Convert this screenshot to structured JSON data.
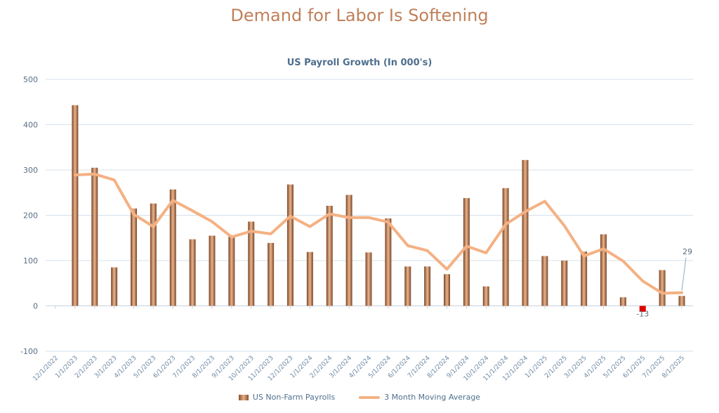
{
  "page_title": "Demand for Labor Is Softening",
  "chart_data": {
    "type": "bar",
    "title": "US Payroll Growth (In 000's)",
    "xlabel": "",
    "ylabel": "",
    "ylim": [
      -100,
      500
    ],
    "yticks": [
      500,
      400,
      300,
      200,
      100,
      0,
      -100
    ],
    "grid": true,
    "legend_position": "bottom",
    "categories": [
      "12/1/2022",
      "1/1/2023",
      "2/1/2023",
      "3/1/2023",
      "4/1/2023",
      "5/1/2023",
      "6/1/2023",
      "7/1/2023",
      "8/1/2023",
      "9/1/2023",
      "10/1/2023",
      "11/1/2023",
      "12/1/2023",
      "1/1/2024",
      "2/1/2024",
      "3/1/2024",
      "4/1/2024",
      "5/1/2024",
      "6/1/2024",
      "7/1/2024",
      "8/1/2024",
      "9/1/2024",
      "10/1/2024",
      "11/1/2024",
      "12/1/2024",
      "1/1/2025",
      "2/1/2025",
      "3/1/2025",
      "4/1/2025",
      "5/1/2025",
      "6/1/2025",
      "7/1/2025",
      "8/1/2025"
    ],
    "series": [
      {
        "name": "US Non-Farm Payrolls",
        "type": "bar",
        "values": [
          null,
          443,
          305,
          85,
          215,
          226,
          257,
          147,
          155,
          153,
          186,
          139,
          268,
          119,
          221,
          245,
          118,
          193,
          87,
          87,
          70,
          238,
          43,
          260,
          322,
          110,
          100,
          120,
          158,
          19,
          -13,
          79,
          22
        ]
      },
      {
        "name": "3 Month Moving Average",
        "type": "line",
        "values": [
          null,
          289,
          291,
          278,
          202,
          175,
          233,
          210,
          186,
          152,
          165,
          159,
          198,
          175,
          203,
          195,
          195,
          185,
          133,
          122,
          81,
          132,
          117,
          180,
          208,
          231,
          177,
          110,
          126,
          99,
          55,
          28,
          29
        ]
      }
    ],
    "annotations": [
      {
        "category": "6/1/2025",
        "text": "-13",
        "series": "US Non-Farm Payrolls"
      },
      {
        "category": "8/1/2025",
        "text": "29",
        "series": "3 Month Moving Average"
      }
    ],
    "colors": {
      "bar": "#b0724a",
      "bar_negative": "#e00000",
      "line": "#f4b183",
      "grid": "#d6e0ea"
    }
  }
}
